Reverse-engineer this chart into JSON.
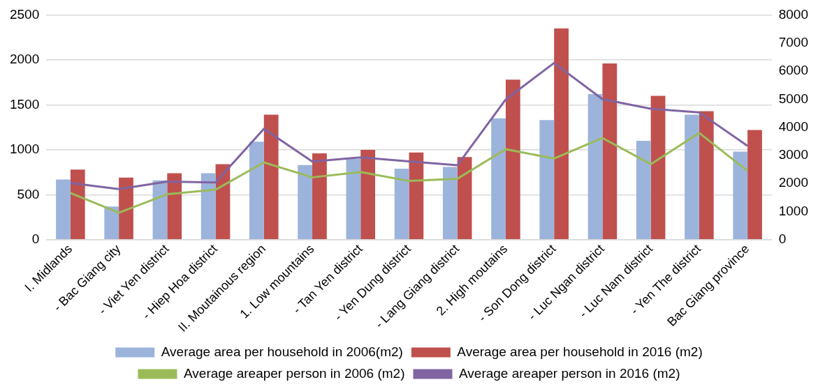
{
  "chart_data": {
    "type": "bar",
    "categories": [
      "I. Midlands",
      "- Bac Giang city",
      "- Viet Yen district",
      "- Hiep Hoa district",
      "II. Moutainous region",
      "1. Low mountains",
      "- Tan Yen district",
      "- Yen Dung district",
      "- Lang Giang district",
      "2. High moutains",
      "- Son Dong district",
      "- Luc Ngan district",
      "- Luc Nam district",
      "- Yen The district",
      "Bac Giang province"
    ],
    "series": [
      {
        "name": "Average area per household in 2006(m2)",
        "color": "#9cb4dc",
        "values": [
          670,
          370,
          660,
          740,
          1090,
          830,
          900,
          790,
          810,
          1350,
          1330,
          1620,
          1100,
          1390,
          980
        ]
      },
      {
        "name": "Average area per household in 2016 (m2)",
        "color": "#c0504d",
        "values": [
          780,
          690,
          740,
          840,
          1390,
          960,
          1000,
          970,
          920,
          1780,
          2350,
          1960,
          1600,
          1430,
          1220
        ]
      },
      {
        "name": "Average areaper person in 2006 (m2)",
        "type": "line",
        "axis": "y2",
        "color": "#9bbb59",
        "values": [
          1660,
          960,
          1620,
          1780,
          2750,
          2220,
          2410,
          2090,
          2170,
          3220,
          2890,
          3620,
          2690,
          3800,
          2450
        ]
      },
      {
        "name": "Average areaper person in 2016 (m2)",
        "type": "line",
        "axis": "y2",
        "color": "#8064a2",
        "values": [
          2020,
          1800,
          2070,
          2040,
          3950,
          2780,
          2930,
          2790,
          2650,
          4990,
          6290,
          5000,
          4660,
          4530,
          3340
        ]
      }
    ],
    "ylim": [
      0,
      2500
    ],
    "yticks": [
      0,
      500,
      1000,
      1500,
      2000,
      2500
    ],
    "y2lim": [
      0,
      8000
    ],
    "y2ticks": [
      0,
      1000,
      2000,
      3000,
      4000,
      5000,
      6000,
      7000,
      8000
    ],
    "grid": "y",
    "legend": "bottom",
    "marker": "none"
  }
}
